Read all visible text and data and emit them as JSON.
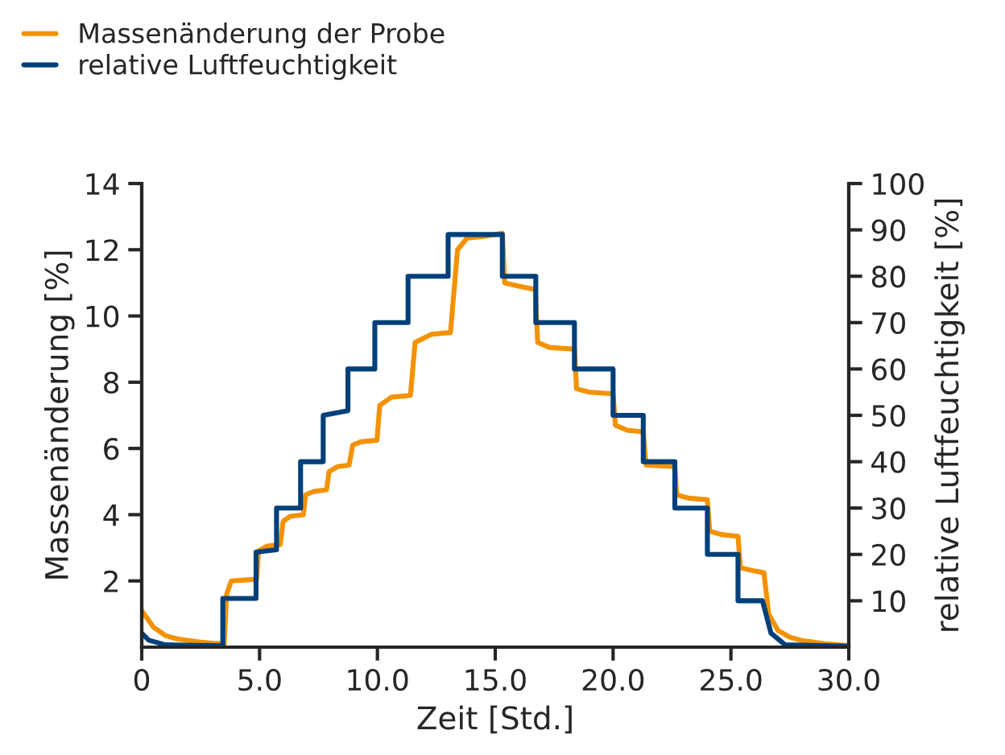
{
  "chart_data": {
    "type": "line",
    "xlabel": "Zeit [Std.]",
    "ylabel": "Massenänderung [%]",
    "y2label": "relative Luftfeuchtigkeit [%]",
    "xlim": [
      0,
      30
    ],
    "xticks": [
      0,
      {
        "value": 5,
        "label": "5.0"
      },
      {
        "value": 10,
        "label": "10.0"
      },
      {
        "value": 15,
        "label": "15.0"
      },
      {
        "value": 20,
        "label": "20.0"
      },
      {
        "value": 25,
        "label": "25.0"
      },
      {
        "value": 30,
        "label": "30.0"
      }
    ],
    "ylim": [
      0,
      14
    ],
    "yticks": [
      2,
      4,
      6,
      8,
      10,
      12,
      14
    ],
    "y2lim": [
      0,
      100
    ],
    "y2ticks": [
      10,
      20,
      30,
      40,
      50,
      60,
      70,
      80,
      90,
      100
    ],
    "legend": "top left",
    "grid": false,
    "marker": "none",
    "line_style": "solid",
    "series": [
      {
        "name": "Massenänderung der Probe",
        "color": "#f39200",
        "axis": "y",
        "x": [
          0,
          0.5,
          1.0,
          1.5,
          2.0,
          2.5,
          3.0,
          3.5,
          3.6,
          3.8,
          4.88,
          4.95,
          5.3,
          5.88,
          6.0,
          6.3,
          6.86,
          6.95,
          7.3,
          7.84,
          7.95,
          8.3,
          8.8,
          8.95,
          9.3,
          9.98,
          10.1,
          10.6,
          11.4,
          11.6,
          12.3,
          13.1,
          13.4,
          13.8,
          14.5,
          15.3,
          15.4,
          16.0,
          16.7,
          16.8,
          17.3,
          18.36,
          18.45,
          19.0,
          20.0,
          20.1,
          20.6,
          21.28,
          21.4,
          22.62,
          22.7,
          23.2,
          24.0,
          24.1,
          24.6,
          25.3,
          25.4,
          26.0,
          26.4,
          26.6,
          27.0,
          27.5,
          28.0,
          29.0,
          30.0
        ],
        "values": [
          1.1,
          0.6,
          0.35,
          0.25,
          0.2,
          0.15,
          0.12,
          0.1,
          1.6,
          2.0,
          2.05,
          2.9,
          3.05,
          3.1,
          3.8,
          3.95,
          4.0,
          4.6,
          4.7,
          4.75,
          5.3,
          5.45,
          5.5,
          6.1,
          6.2,
          6.25,
          7.3,
          7.55,
          7.6,
          9.2,
          9.45,
          9.5,
          12.0,
          12.35,
          12.4,
          12.5,
          11.0,
          10.9,
          10.8,
          9.2,
          9.05,
          9.0,
          7.8,
          7.7,
          7.65,
          6.7,
          6.55,
          6.5,
          5.5,
          5.45,
          4.6,
          4.5,
          4.45,
          3.5,
          3.4,
          3.35,
          2.4,
          2.3,
          2.25,
          1.0,
          0.5,
          0.3,
          0.2,
          0.1,
          0.05
        ]
      },
      {
        "name": "relative Luftfeuchtigkeit",
        "color": "#00407a",
        "axis": "y2",
        "x": [
          0,
          0.3,
          1,
          3.44,
          3.44,
          4.85,
          4.85,
          5.72,
          5.72,
          6.74,
          6.74,
          7.7,
          7.7,
          8.75,
          8.75,
          9.89,
          9.89,
          11.3,
          11.3,
          13.0,
          13.0,
          15.3,
          15.3,
          16.72,
          16.72,
          18.36,
          18.36,
          20.0,
          20.0,
          21.28,
          21.28,
          22.62,
          22.62,
          24.0,
          24.0,
          25.3,
          25.3,
          26.34,
          26.7,
          27.3,
          30.0
        ],
        "values": [
          3,
          1.5,
          0.5,
          0.3,
          10.5,
          10.5,
          20.5,
          21,
          30,
          30,
          40,
          40,
          50,
          51,
          60,
          60,
          70,
          70,
          80,
          80,
          89,
          89,
          80,
          80,
          70,
          70,
          60,
          60,
          50,
          50,
          40,
          40,
          30,
          30,
          20,
          20,
          10,
          10,
          3,
          0.5,
          0.2
        ]
      }
    ]
  }
}
